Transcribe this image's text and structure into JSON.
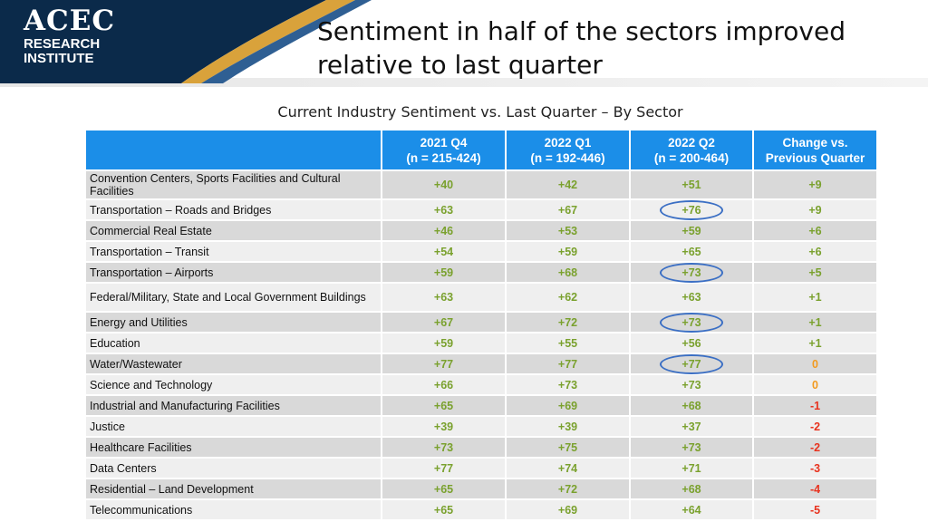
{
  "brand": {
    "logo_line1": "ACEC",
    "logo_line2": "RESEARCH",
    "logo_line3": "INSTITUTE",
    "colors": {
      "navy": "#0b2a4a",
      "gold": "#d9a23b",
      "header_blue": "#1b8ee8",
      "green": "#7aa12e",
      "orange": "#f29a1f",
      "red": "#e8321e",
      "ring": "#3b6fc4"
    }
  },
  "slide": {
    "title_line1": "Sentiment in half of the sectors improved",
    "title_line2": "relative to last quarter",
    "subtitle": "Current Industry Sentiment vs. Last Quarter – By Sector"
  },
  "chart_data": {
    "type": "table",
    "title": "Current Industry Sentiment vs. Last Quarter – By Sector",
    "columns": [
      {
        "line1": "2021 Q4",
        "line2": "(n = 215-424)"
      },
      {
        "line1": "2022 Q1",
        "line2": "(n = 192-446)"
      },
      {
        "line1": "2022 Q2",
        "line2": "(n = 200-464)"
      },
      {
        "line1": "Change vs.",
        "line2": "Previous Quarter"
      }
    ],
    "rows": [
      {
        "sector": "Convention Centers, Sports Facilities and Cultural Facilities",
        "q4": "+40",
        "q1": "+42",
        "q2": "+51",
        "change": "+9",
        "circled": false,
        "tall": true
      },
      {
        "sector": "Transportation – Roads and Bridges",
        "q4": "+63",
        "q1": "+67",
        "q2": "+76",
        "change": "+9",
        "circled": true,
        "tall": false
      },
      {
        "sector": "Commercial Real Estate",
        "q4": "+46",
        "q1": "+53",
        "q2": "+59",
        "change": "+6",
        "circled": false,
        "tall": false
      },
      {
        "sector": "Transportation – Transit",
        "q4": "+54",
        "q1": "+59",
        "q2": "+65",
        "change": "+6",
        "circled": false,
        "tall": false
      },
      {
        "sector": "Transportation – Airports",
        "q4": "+59",
        "q1": "+68",
        "q2": "+73",
        "change": "+5",
        "circled": true,
        "tall": false
      },
      {
        "sector": "Federal/Military, State and Local Government Buildings",
        "q4": "+63",
        "q1": "+62",
        "q2": "+63",
        "change": "+1",
        "circled": false,
        "tall": true
      },
      {
        "sector": "Energy and Utilities",
        "q4": "+67",
        "q1": "+72",
        "q2": "+73",
        "change": "+1",
        "circled": true,
        "tall": false
      },
      {
        "sector": "Education",
        "q4": "+59",
        "q1": "+55",
        "q2": "+56",
        "change": "+1",
        "circled": false,
        "tall": false
      },
      {
        "sector": "Water/Wastewater",
        "q4": "+77",
        "q1": "+77",
        "q2": "+77",
        "change": "0",
        "circled": true,
        "tall": false
      },
      {
        "sector": "Science and Technology",
        "q4": "+66",
        "q1": "+73",
        "q2": "+73",
        "change": "0",
        "circled": false,
        "tall": false
      },
      {
        "sector": "Industrial and Manufacturing Facilities",
        "q4": "+65",
        "q1": "+69",
        "q2": "+68",
        "change": "-1",
        "circled": false,
        "tall": false
      },
      {
        "sector": "Justice",
        "q4": "+39",
        "q1": "+39",
        "q2": "+37",
        "change": "-2",
        "circled": false,
        "tall": false
      },
      {
        "sector": "Healthcare Facilities",
        "q4": "+73",
        "q1": "+75",
        "q2": "+73",
        "change": "-2",
        "circled": false,
        "tall": false
      },
      {
        "sector": "Data Centers",
        "q4": "+77",
        "q1": "+74",
        "q2": "+71",
        "change": "-3",
        "circled": false,
        "tall": false
      },
      {
        "sector": "Residential – Land Development",
        "q4": "+65",
        "q1": "+72",
        "q2": "+68",
        "change": "-4",
        "circled": false,
        "tall": false
      },
      {
        "sector": "Telecommunications",
        "q4": "+65",
        "q1": "+69",
        "q2": "+64",
        "change": "-5",
        "circled": false,
        "tall": false
      }
    ]
  }
}
